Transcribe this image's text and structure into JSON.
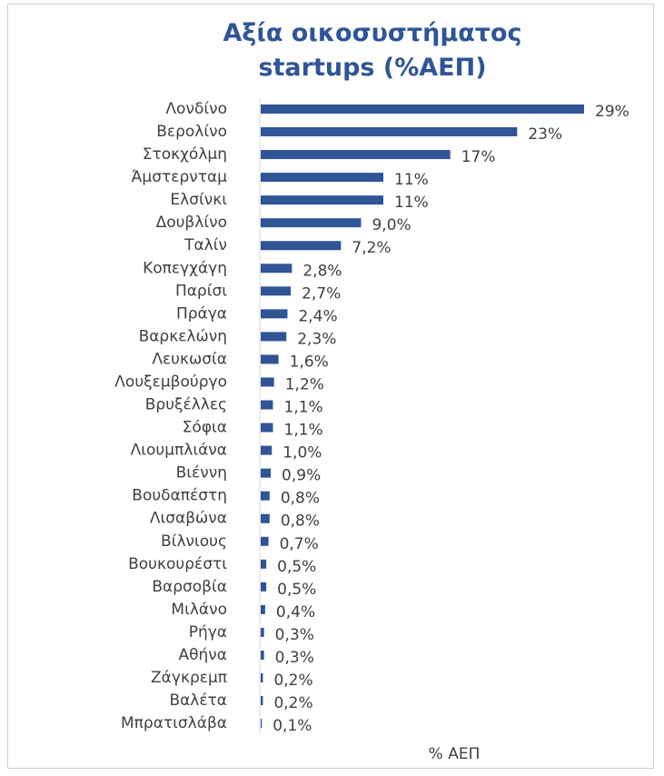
{
  "chart_data": {
    "type": "hbar",
    "title": "Αξία οικοσυστήματος startups (%ΑΕΠ)",
    "x_label": "% ΑΕΠ",
    "color": "#2f5597",
    "categories": [
      "Λονδίνο",
      "Βερολίνο",
      "Στοκχόλμη",
      "Άμστερνταμ",
      "Ελσίνκι",
      "Δουβλίνο",
      "Ταλίν",
      "Κοπεγχάγη",
      "Παρίσι",
      "Πράγα",
      "Βαρκελώνη",
      "Λευκωσία",
      "Λουξεμβούργο",
      "Βρυξέλλες",
      "Σόφια",
      "Λιουμπλιάνα",
      "Βιέννη",
      "Βουδαπέστη",
      "Λισαβώνα",
      "Βίλνιους",
      "Βουκουρέστι",
      "Βαρσοβία",
      "Μιλάνο",
      "Ρήγα",
      "Αθήνα",
      "Ζάγκρεμπ",
      "Βαλέτα",
      "Μπρατισλάβα"
    ],
    "values": [
      29,
      23,
      17,
      11,
      11,
      9.0,
      7.2,
      2.8,
      2.7,
      2.4,
      2.3,
      1.6,
      1.2,
      1.1,
      1.1,
      1.0,
      0.9,
      0.8,
      0.8,
      0.7,
      0.5,
      0.5,
      0.4,
      0.3,
      0.3,
      0.2,
      0.2,
      0.1
    ],
    "value_labels": [
      "29%",
      "23%",
      "17%",
      "11%",
      "11%",
      "9,0%",
      "7,2%",
      "2,8%",
      "2,7%",
      "2,4%",
      "2,3%",
      "1,6%",
      "1,2%",
      "1,1%",
      "1,1%",
      "1,0%",
      "0,9%",
      "0,8%",
      "0,8%",
      "0,7%",
      "0,5%",
      "0,5%",
      "0,4%",
      "0,3%",
      "0,3%",
      "0,2%",
      "0,2%",
      "0,1%"
    ]
  }
}
